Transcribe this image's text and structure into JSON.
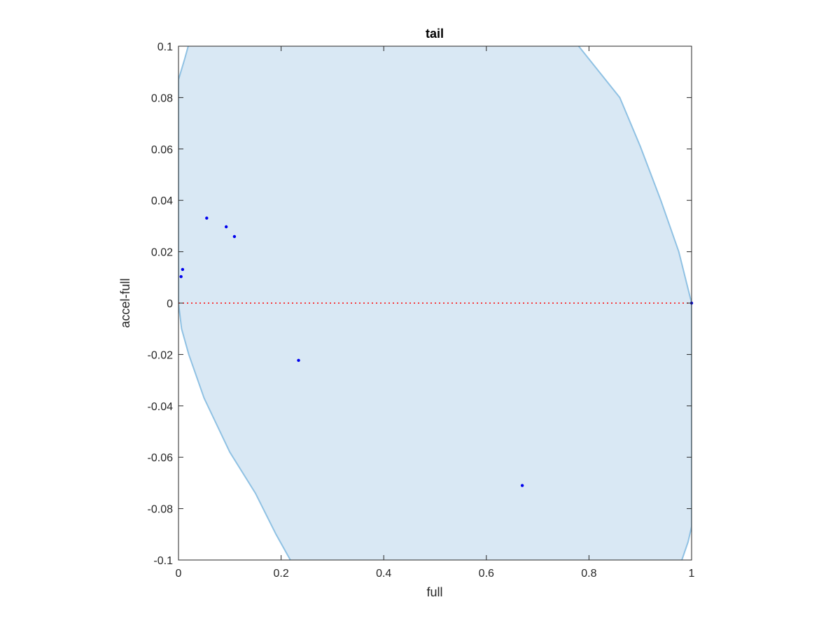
{
  "chart_data": {
    "type": "scatter",
    "title": "tail",
    "xlabel": "full",
    "ylabel": "accel-full",
    "xlim": [
      0,
      1
    ],
    "ylim": [
      -0.1,
      0.1
    ],
    "xticks": [
      0,
      0.2,
      0.4,
      0.6,
      0.8,
      1
    ],
    "xtick_labels": [
      "0",
      "0.2",
      "0.4",
      "0.6",
      "0.8",
      "1"
    ],
    "yticks": [
      0.1,
      0.08,
      0.06,
      0.04,
      0.02,
      0,
      -0.02,
      -0.04,
      -0.06,
      -0.08,
      -0.1
    ],
    "ytick_labels": [
      "0.1",
      "0.08",
      "0.06",
      "0.04",
      "0.02",
      "0",
      "-0.02",
      "-0.04",
      "-0.06",
      "-0.08",
      "-0.1"
    ],
    "grid": false,
    "points": [
      {
        "x": 0.005,
        "y": 0.0103
      },
      {
        "x": 0.008,
        "y": 0.0131
      },
      {
        "x": 0.055,
        "y": 0.0331
      },
      {
        "x": 0.093,
        "y": 0.0297
      },
      {
        "x": 0.109,
        "y": 0.0259
      },
      {
        "x": 0.234,
        "y": -0.0223
      },
      {
        "x": 0.67,
        "y": -0.071
      },
      {
        "x": 1.0,
        "y": 0.0
      }
    ],
    "reference_line": {
      "y": 0,
      "style": "dotted",
      "color": "#ff0000"
    },
    "region": {
      "left_boundary": [
        {
          "x": 0.019,
          "y": 0.1
        },
        {
          "x": 0.012,
          "y": 0.095
        },
        {
          "x": 0.0,
          "y": 0.087
        },
        {
          "x": 0.0,
          "y": 0.0
        },
        {
          "x": 0.006,
          "y": -0.01
        },
        {
          "x": 0.02,
          "y": -0.02
        },
        {
          "x": 0.05,
          "y": -0.037
        },
        {
          "x": 0.1,
          "y": -0.058
        },
        {
          "x": 0.15,
          "y": -0.074
        },
        {
          "x": 0.19,
          "y": -0.09
        },
        {
          "x": 0.218,
          "y": -0.1
        }
      ],
      "right_boundary": [
        {
          "x": 0.78,
          "y": 0.1
        },
        {
          "x": 0.86,
          "y": 0.08
        },
        {
          "x": 0.9,
          "y": 0.061
        },
        {
          "x": 0.94,
          "y": 0.04
        },
        {
          "x": 0.975,
          "y": 0.02
        },
        {
          "x": 1.0,
          "y": 0.0
        },
        {
          "x": 1.0,
          "y": -0.087
        },
        {
          "x": 0.993,
          "y": -0.093
        },
        {
          "x": 0.981,
          "y": -0.1
        }
      ],
      "fill_color": "#d9e8f4",
      "line_color": "#8fc1e3"
    },
    "colors": {
      "points": "#0000ee",
      "axes": "#262626"
    }
  }
}
